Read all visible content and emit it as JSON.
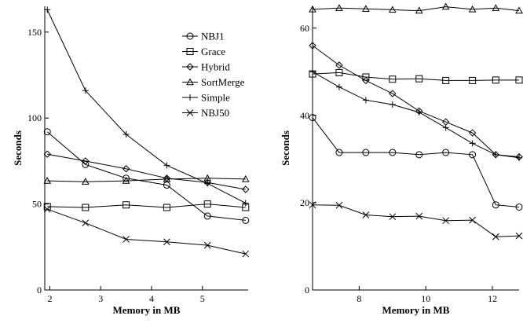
{
  "chart_data": [
    {
      "type": "line",
      "xlabel": "Memory in MB",
      "ylabel": "Seconds",
      "xlim": [
        1.9,
        5.9
      ],
      "ylim": [
        0,
        165
      ],
      "xticks": [
        2,
        3,
        4,
        5
      ],
      "yticks": [
        0,
        50,
        100,
        150
      ],
      "legend": "top-right",
      "series": [
        {
          "name": "NBJ1",
          "marker": "circle",
          "x": [
            1.95,
            2.7,
            3.5,
            4.3,
            5.1,
            5.85
          ],
          "y": [
            92,
            73,
            65,
            61,
            43,
            40.5
          ]
        },
        {
          "name": "Grace",
          "marker": "square",
          "x": [
            1.95,
            2.7,
            3.5,
            4.3,
            5.1,
            5.85
          ],
          "y": [
            48.5,
            48,
            49.5,
            48,
            50,
            48
          ]
        },
        {
          "name": "Hybrid",
          "marker": "diamond",
          "x": [
            1.95,
            2.7,
            3.5,
            4.3,
            5.1,
            5.85
          ],
          "y": [
            79,
            75,
            70.5,
            65,
            62.5,
            58.5
          ]
        },
        {
          "name": "SortMerge",
          "marker": "triangle",
          "x": [
            1.95,
            2.7,
            3.5,
            4.3,
            5.1,
            5.85
          ],
          "y": [
            63.5,
            63,
            63.5,
            64.5,
            65,
            64.5
          ]
        },
        {
          "name": "Simple",
          "marker": "plus",
          "x": [
            1.95,
            2.7,
            3.5,
            4.3,
            5.1,
            5.85
          ],
          "y": [
            163,
            116,
            90.5,
            72.5,
            62,
            50.5
          ]
        },
        {
          "name": "NBJ50",
          "marker": "cross",
          "x": [
            1.95,
            2.7,
            3.5,
            4.3,
            5.1,
            5.85
          ],
          "y": [
            47,
            39,
            29.5,
            28,
            26,
            21
          ]
        }
      ]
    },
    {
      "type": "line",
      "xlabel": "Memory in MB",
      "ylabel": "Seconds",
      "xlim": [
        6.6,
        12.8
      ],
      "ylim": [
        0,
        65
      ],
      "xticks": [
        8,
        10,
        12
      ],
      "yticks": [
        0,
        20,
        40,
        60
      ],
      "series": [
        {
          "name": "NBJ1",
          "marker": "circle",
          "x": [
            6.6,
            7.4,
            8.2,
            9.0,
            9.8,
            10.6,
            11.4,
            12.1,
            12.8
          ],
          "y": [
            39.5,
            31.5,
            31.5,
            31.5,
            31,
            31.5,
            31,
            19.5,
            19
          ]
        },
        {
          "name": "Grace",
          "marker": "square",
          "x": [
            6.6,
            7.4,
            8.2,
            9.0,
            9.8,
            10.6,
            11.4,
            12.1,
            12.8
          ],
          "y": [
            49.5,
            49.8,
            48.8,
            48.3,
            48.4,
            48.0,
            48.0,
            48.1,
            48.1
          ]
        },
        {
          "name": "Hybrid",
          "marker": "diamond",
          "x": [
            6.6,
            7.4,
            8.2,
            9.0,
            9.8,
            10.6,
            11.4,
            12.1,
            12.8
          ],
          "y": [
            56,
            51.5,
            48,
            45,
            41,
            38.5,
            36,
            31,
            30.5
          ]
        },
        {
          "name": "SortMerge",
          "marker": "triangle",
          "x": [
            6.6,
            7.4,
            8.2,
            9.0,
            9.8,
            10.6,
            11.4,
            12.1,
            12.8
          ],
          "y": [
            64.3,
            64.6,
            64.4,
            64.2,
            64.0,
            64.9,
            64.3,
            64.6,
            64.0
          ]
        },
        {
          "name": "Simple",
          "marker": "plus",
          "x": [
            6.6,
            7.4,
            8.2,
            9.0,
            9.8,
            10.6,
            11.4,
            12.1,
            12.8
          ],
          "y": [
            50,
            46.5,
            43.5,
            42.5,
            40.7,
            37.2,
            33.6,
            31,
            30.3
          ]
        },
        {
          "name": "NBJ50",
          "marker": "cross",
          "x": [
            6.6,
            7.4,
            8.2,
            9.0,
            9.8,
            10.6,
            11.4,
            12.1,
            12.8
          ],
          "y": [
            19.5,
            19.4,
            17.2,
            16.8,
            16.9,
            15.9,
            16.0,
            12.2,
            12.4
          ]
        }
      ]
    }
  ]
}
